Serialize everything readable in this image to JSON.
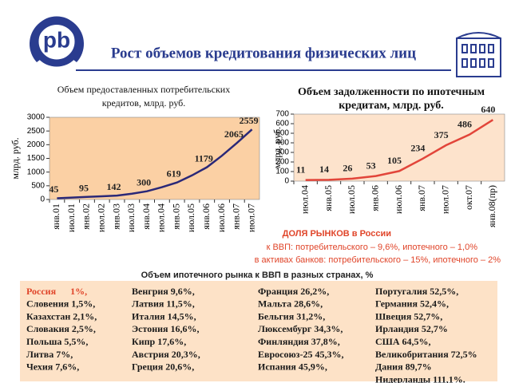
{
  "header": {
    "title": "Рост объемов кредитования физических лиц",
    "logo": "pb"
  },
  "chart_data": [
    {
      "type": "line",
      "title": [
        "Объем предоставленных потребительских",
        "кредитов, млрд. руб."
      ],
      "ylabel": "млрд. руб.",
      "categories": [
        "янв.01",
        "июл.01",
        "янв.02",
        "июл.02",
        "янв.03",
        "июл.03",
        "янв.04",
        "июл.04",
        "янв.05",
        "июл.05",
        "янв.06",
        "июл.06",
        "янв.07",
        "июл.07"
      ],
      "values": [
        45,
        70,
        95,
        115,
        142,
        210,
        300,
        450,
        619,
        880,
        1179,
        1600,
        2065,
        2559
      ],
      "value_labels": [
        "45",
        null,
        "95",
        null,
        "142",
        null,
        "300",
        null,
        "619",
        null,
        "1179",
        null,
        "2065",
        "2559"
      ],
      "color": "#2a2878",
      "background": "#fbd0a4",
      "ylim": [
        0,
        3000
      ],
      "yticks": [
        0,
        500,
        1000,
        1500,
        2000,
        2500,
        3000
      ]
    },
    {
      "type": "line",
      "title": [
        "Объем задолженности по ипотечным",
        "кредитам, млрд. руб."
      ],
      "ylabel": "млрд. руб.",
      "categories": [
        "июл.04",
        "янв.05",
        "июл.05",
        "янв.06",
        "июл.06",
        "янв.07",
        "июл.07",
        "окт.07",
        "янв.08(пр)"
      ],
      "values": [
        11,
        14,
        26,
        53,
        105,
        234,
        375,
        486,
        640
      ],
      "color": "#e2453a",
      "background": "#fde3cc",
      "ylim": [
        0,
        700
      ],
      "yticks": [
        0,
        100,
        200,
        300,
        400,
        500,
        600,
        700
      ]
    }
  ],
  "notes": [
    "ДОЛЯ РЫНКОВ в России",
    "к ВВП: потребительского – 9,6%, ипотечного – 1,0%",
    "в активах банков: потребительского – 15%, ипотечного – 2%"
  ],
  "table": {
    "title": "Объем ипотечного рынка к ВВП в разных странах, %",
    "columns": [
      [
        "Россия      1%,",
        "Словения 1,5%,",
        "Казахстан 2,1%,",
        "Словакия 2,5%,",
        "Польша 5,5%,",
        "Литва 7%,",
        "Чехия 7,6%,"
      ],
      [
        "Венгрия 9,6%,",
        "Латвия 11,5%,",
        "Италия 14,5%,",
        "Эстония 16,6%,",
        "Кипр 17,6%,",
        "Австрия 20,3%,",
        "Греция 20,6%,"
      ],
      [
        "Франция 26,2%,",
        "Мальта 28,6%,",
        "Бельгия 31,2%,",
        "Люксембург 34,3%,",
        "Финляндия 37,8%,",
        "Евросоюз-25 45,3%,",
        "Испания 45,9%,"
      ],
      [
        "Португалия 52,5%,",
        "Германия 52,4%,",
        "Швеция 52,7%,",
        "Ирландия 52,7%",
        "США 64,5%,",
        "Великобритания 72,5%",
        "Дания 89,7%",
        "Нидерланды 111,1%."
      ]
    ]
  }
}
